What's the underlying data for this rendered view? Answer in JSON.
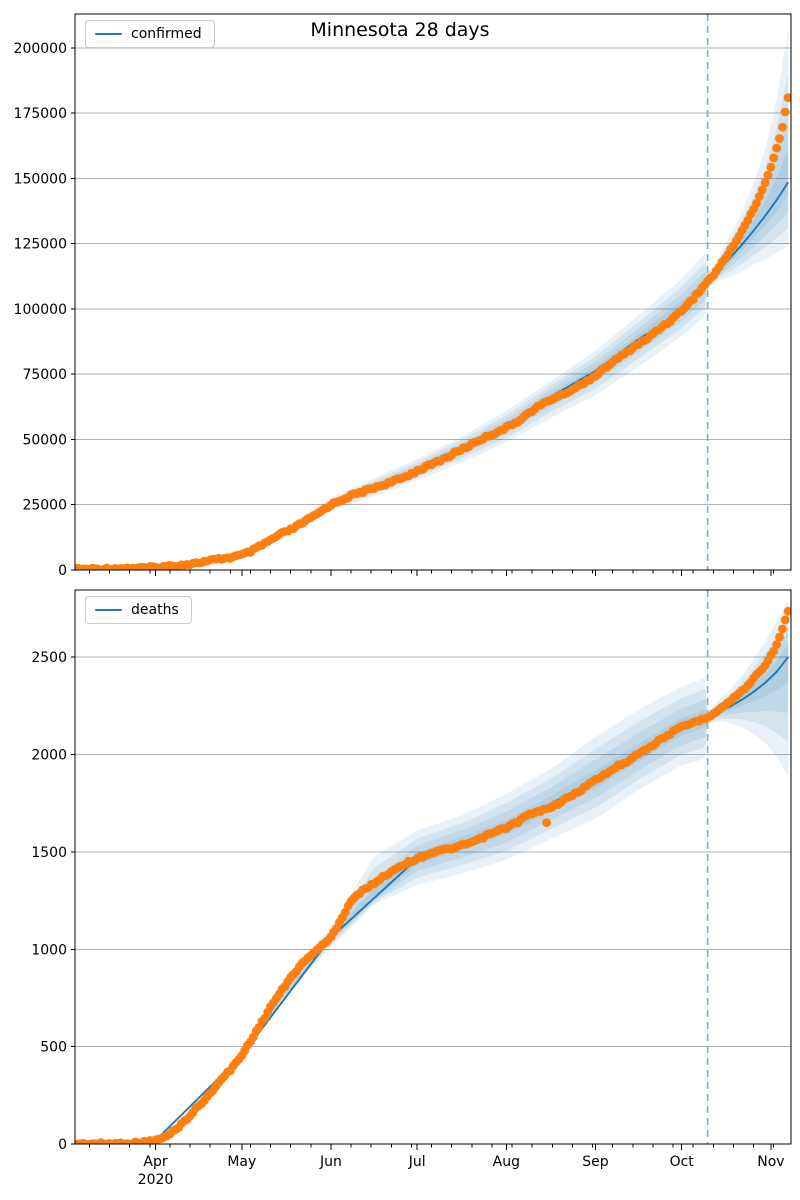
{
  "figure": {
    "title": "Minnesota 28 days",
    "background": "#ffffff"
  },
  "colors": {
    "actual_dots": "#ff7f0e",
    "forecast_line": "#1f77b4",
    "split_line": "#7aadd1",
    "grid": "#b0b0b0",
    "axis": "#000000",
    "legend_border": "#cccccc",
    "band_rgb": "31,119,180",
    "band_alpha": 0.1
  },
  "band_levels": [
    1.0,
    0.72,
    0.47,
    0.22
  ],
  "x_axis": {
    "days_total": 249,
    "split_day": 220,
    "month_start_days": [
      28,
      58,
      89,
      119,
      150,
      181,
      211,
      242
    ],
    "month_labels": [
      "Apr",
      "May",
      "Jun",
      "Jul",
      "Aug",
      "Sep",
      "Oct",
      "Nov"
    ],
    "year_label": "2020",
    "year_under_month_index": 0,
    "minor_tick_start": 5,
    "minor_tick_step": 7
  },
  "chart_data": [
    {
      "type": "line",
      "title": "Minnesota 28 days",
      "legend": "confirmed",
      "ylabel": "",
      "xlabel": "",
      "ylim": [
        0,
        213000
      ],
      "yticks": [
        0,
        25000,
        50000,
        75000,
        100000,
        125000,
        150000,
        175000,
        200000
      ],
      "grid": "horizontal",
      "legend_position": "upper left",
      "series": [
        {
          "name": "reported (orange dots)",
          "points": [
            [
              0,
              300
            ],
            [
              7,
              400
            ],
            [
              14,
              550
            ],
            [
              21,
              750
            ],
            [
              28,
              1000
            ],
            [
              35,
              1700
            ],
            [
              42,
              2600
            ],
            [
              49,
              4000
            ],
            [
              54,
              4800
            ],
            [
              58,
              5800
            ],
            [
              61,
              7000
            ],
            [
              65,
              9500
            ],
            [
              68,
              11500
            ],
            [
              72,
              14000
            ],
            [
              76,
              16000
            ],
            [
              79,
              18000
            ],
            [
              83,
              20500
            ],
            [
              89,
              25000
            ],
            [
              93,
              27000
            ],
            [
              96,
              28500
            ],
            [
              100,
              30000
            ],
            [
              103,
              31200
            ],
            [
              107,
              32500
            ],
            [
              110,
              33700
            ],
            [
              114,
              35300
            ],
            [
              119,
              38000
            ],
            [
              123,
              40000
            ],
            [
              126,
              41500
            ],
            [
              130,
              43500
            ],
            [
              133,
              45500
            ],
            [
              137,
              47500
            ],
            [
              140,
              49500
            ],
            [
              144,
              51500
            ],
            [
              150,
              54500
            ],
            [
              154,
              57000
            ],
            [
              157,
              59500
            ],
            [
              161,
              62500
            ],
            [
              164,
              64500
            ],
            [
              168,
              66500
            ],
            [
              171,
              68000
            ],
            [
              176,
              71000
            ],
            [
              181,
              74500
            ],
            [
              185,
              78000
            ],
            [
              188,
              80500
            ],
            [
              192,
              83500
            ],
            [
              195,
              86000
            ],
            [
              199,
              88500
            ],
            [
              202,
              91500
            ],
            [
              207,
              95500
            ],
            [
              211,
              99500
            ],
            [
              215,
              104000
            ],
            [
              218,
              108000
            ],
            [
              220,
              110700
            ],
            [
              222,
              113000
            ],
            [
              224,
              116000
            ],
            [
              226,
              119200
            ],
            [
              228,
              122800
            ],
            [
              230,
              126200
            ],
            [
              232,
              130000
            ],
            [
              234,
              134000
            ],
            [
              236,
              138200
            ],
            [
              238,
              143000
            ],
            [
              240,
              148500
            ],
            [
              242,
              154000
            ],
            [
              244,
              161500
            ],
            [
              245,
              165500
            ],
            [
              246,
              170000
            ],
            [
              247,
              175500
            ],
            [
              248,
              181000
            ]
          ]
        },
        {
          "name": "model median (blue line)",
          "points": [
            [
              0,
              300
            ],
            [
              28,
              1000
            ],
            [
              58,
              5800
            ],
            [
              89,
              25000
            ],
            [
              119,
              38200
            ],
            [
              150,
              54800
            ],
            [
              164,
              65500
            ],
            [
              181,
              76200
            ],
            [
              195,
              87700
            ],
            [
              204,
              94000
            ],
            [
              211,
              100700
            ],
            [
              216,
              105500
            ],
            [
              218,
              107000
            ],
            [
              219,
              108300
            ],
            [
              220,
              110700
            ],
            [
              224,
              115000
            ],
            [
              228,
              119800
            ],
            [
              232,
              124700
            ],
            [
              236,
              130000
            ],
            [
              240,
              135600
            ],
            [
              244,
              141700
            ],
            [
              248,
              148500
            ]
          ]
        }
      ],
      "uncertainty_bands": [
        [
          40,
          2300,
          2500
        ],
        [
          49,
          3700,
          4400
        ],
        [
          58,
          5300,
          6500
        ],
        [
          72,
          12800,
          15600
        ],
        [
          89,
          22500,
          27800
        ],
        [
          104,
          28300,
          35300
        ],
        [
          119,
          34200,
          42500
        ],
        [
          135,
          41500,
          51500
        ],
        [
          150,
          49000,
          61000
        ],
        [
          166,
          58500,
          72800
        ],
        [
          181,
          67000,
          84000
        ],
        [
          196,
          78000,
          97500
        ],
        [
          211,
          89500,
          111500
        ],
        [
          216,
          94500,
          117500
        ],
        [
          219,
          97500,
          121000
        ],
        [
          220,
          108000,
          113500
        ],
        [
          224,
          110500,
          120500
        ],
        [
          228,
          112500,
          128500
        ],
        [
          232,
          114500,
          137500
        ],
        [
          236,
          117000,
          148000
        ],
        [
          240,
          119000,
          161000
        ],
        [
          244,
          121500,
          180000
        ],
        [
          248,
          124000,
          207000
        ]
      ],
      "outliers": []
    },
    {
      "type": "line",
      "title": "",
      "legend": "deaths",
      "ylabel": "",
      "xlabel": "",
      "ylim": [
        0,
        2845
      ],
      "yticks": [
        0,
        500,
        1000,
        1500,
        2000,
        2500
      ],
      "grid": "horizontal",
      "legend_position": "upper left",
      "series": [
        {
          "name": "reported (orange dots)",
          "points": [
            [
              0,
              1
            ],
            [
              14,
              2
            ],
            [
              21,
              5
            ],
            [
              28,
              18
            ],
            [
              32,
              40
            ],
            [
              35,
              75
            ],
            [
              39,
              130
            ],
            [
              42,
              180
            ],
            [
              46,
              240
            ],
            [
              49,
              300
            ],
            [
              54,
              380
            ],
            [
              58,
              455
            ],
            [
              61,
              530
            ],
            [
              65,
              625
            ],
            [
              68,
              705
            ],
            [
              72,
              790
            ],
            [
              76,
              875
            ],
            [
              79,
              925
            ],
            [
              83,
              985
            ],
            [
              86,
              1020
            ],
            [
              89,
              1060
            ],
            [
              93,
              1165
            ],
            [
              96,
              1250
            ],
            [
              100,
              1300
            ],
            [
              103,
              1330
            ],
            [
              107,
              1370
            ],
            [
              110,
              1400
            ],
            [
              114,
              1435
            ],
            [
              119,
              1465
            ],
            [
              123,
              1490
            ],
            [
              126,
              1505
            ],
            [
              130,
              1515
            ],
            [
              133,
              1525
            ],
            [
              137,
              1545
            ],
            [
              140,
              1560
            ],
            [
              144,
              1590
            ],
            [
              147,
              1608
            ],
            [
              150,
              1625
            ],
            [
              154,
              1655
            ],
            [
              157,
              1685
            ],
            [
              161,
              1705
            ],
            [
              164,
              1722
            ],
            [
              168,
              1748
            ],
            [
              171,
              1775
            ],
            [
              174,
              1800
            ],
            [
              178,
              1840
            ],
            [
              181,
              1870
            ],
            [
              185,
              1905
            ],
            [
              188,
              1935
            ],
            [
              192,
              1965
            ],
            [
              195,
              2000
            ],
            [
              199,
              2030
            ],
            [
              202,
              2060
            ],
            [
              206,
              2100
            ],
            [
              211,
              2140
            ],
            [
              215,
              2165
            ],
            [
              218,
              2180
            ],
            [
              220,
              2192
            ],
            [
              222,
              2212
            ],
            [
              224,
              2232
            ],
            [
              226,
              2252
            ],
            [
              228,
              2278
            ],
            [
              230,
              2302
            ],
            [
              232,
              2326
            ],
            [
              234,
              2356
            ],
            [
              236,
              2390
            ],
            [
              238,
              2426
            ],
            [
              240,
              2462
            ],
            [
              242,
              2506
            ],
            [
              244,
              2566
            ],
            [
              245,
              2600
            ],
            [
              246,
              2648
            ],
            [
              247,
              2688
            ],
            [
              248,
              2732
            ]
          ]
        },
        {
          "name": "model median (blue line)",
          "points": [
            [
              0,
              1
            ],
            [
              28,
              18
            ],
            [
              58,
              455
            ],
            [
              89,
              1060
            ],
            [
              119,
              1465
            ],
            [
              150,
              1625
            ],
            [
              181,
              1872
            ],
            [
              211,
              2140
            ],
            [
              220,
              2192
            ],
            [
              224,
              2218
            ],
            [
              228,
              2248
            ],
            [
              232,
              2282
            ],
            [
              236,
              2322
            ],
            [
              240,
              2368
            ],
            [
              244,
              2425
            ],
            [
              248,
              2500
            ]
          ]
        }
      ],
      "uncertainty_bands": [
        [
          40,
          120,
          145
        ],
        [
          49,
          270,
          335
        ],
        [
          58,
          430,
          480
        ],
        [
          72,
          750,
          835
        ],
        [
          89,
          1010,
          1115
        ],
        [
          104,
          1230,
          1475
        ],
        [
          119,
          1330,
          1610
        ],
        [
          135,
          1390,
          1690
        ],
        [
          150,
          1460,
          1800
        ],
        [
          166,
          1570,
          1930
        ],
        [
          181,
          1670,
          2090
        ],
        [
          196,
          1820,
          2230
        ],
        [
          211,
          1945,
          2350
        ],
        [
          216,
          1965,
          2375
        ],
        [
          219,
          1980,
          2395
        ],
        [
          220,
          2160,
          2225
        ],
        [
          224,
          2170,
          2280
        ],
        [
          228,
          2160,
          2335
        ],
        [
          232,
          2140,
          2405
        ],
        [
          236,
          2105,
          2490
        ],
        [
          240,
          2060,
          2580
        ],
        [
          244,
          1990,
          2680
        ],
        [
          248,
          1890,
          2790
        ]
      ],
      "outliers": [
        [
          164,
          1650
        ]
      ]
    }
  ]
}
